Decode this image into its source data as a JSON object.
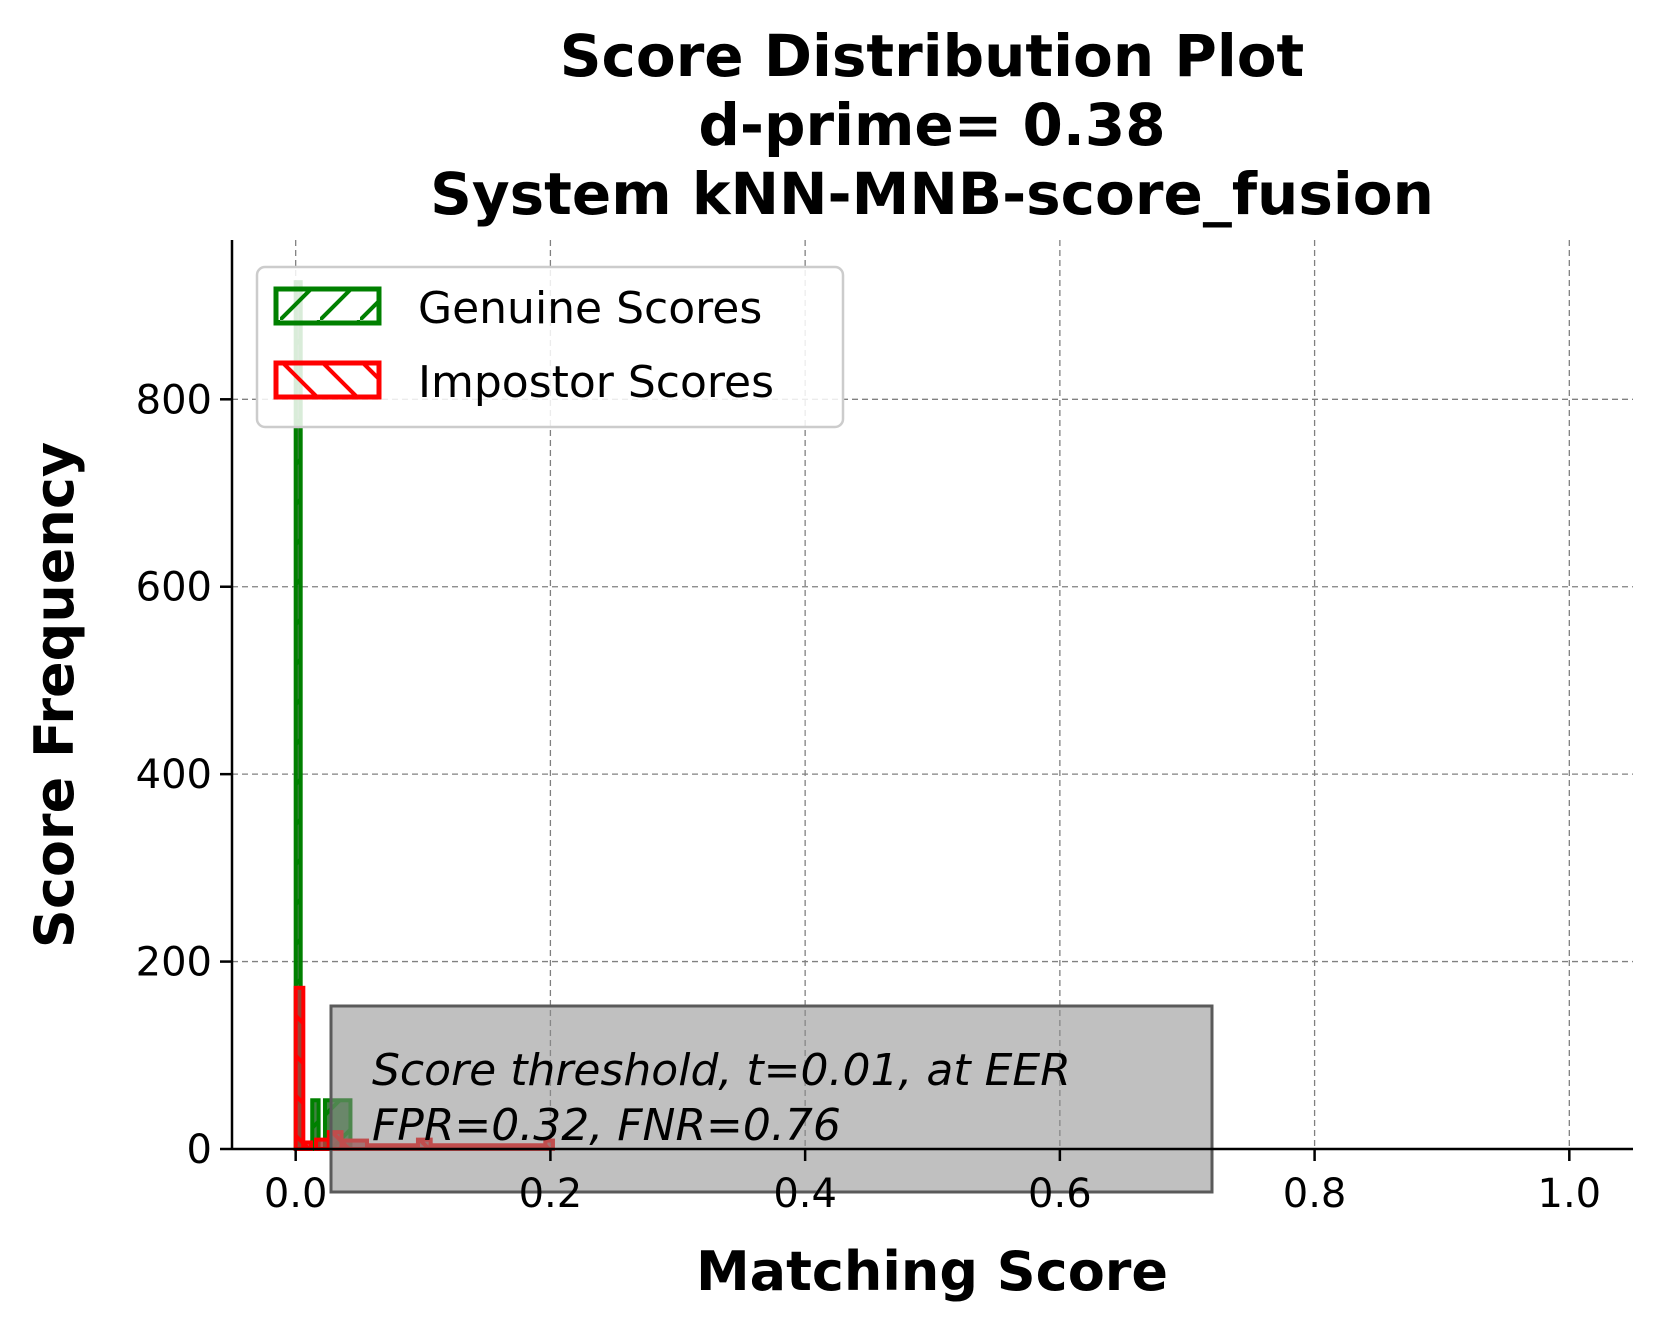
{
  "chart_data": {
    "type": "histogram",
    "title": [
      "Score Distribution Plot",
      "d-prime= 0.38",
      "System kNN-MNB-score_fusion"
    ],
    "xlabel": "Matching Score",
    "ylabel": "Score Frequency",
    "xlim": [
      -0.05,
      1.05
    ],
    "ylim": [
      0,
      970
    ],
    "xticks": [
      "0.0",
      "0.2",
      "0.4",
      "0.6",
      "0.8",
      "1.0"
    ],
    "yticks": [
      "0",
      "200",
      "400",
      "600",
      "800"
    ],
    "grid": true,
    "legend_position": "top-left",
    "series": [
      {
        "name": "Genuine Scores",
        "color": "#008000",
        "hatch": "/",
        "bins": [
          {
            "x0": 0.0,
            "x1": 0.003,
            "value": 925
          },
          {
            "x0": 0.013,
            "x1": 0.018,
            "value": 52
          },
          {
            "x0": 0.023,
            "x1": 0.043,
            "value": 52
          }
        ]
      },
      {
        "name": "Impostor Scores",
        "color": "#ff0000",
        "hatch": "\\",
        "bins": [
          {
            "x0": 0.0,
            "x1": 0.006,
            "value": 172
          },
          {
            "x0": 0.006,
            "x1": 0.012,
            "value": 7
          },
          {
            "x0": 0.016,
            "x1": 0.026,
            "value": 10
          },
          {
            "x0": 0.026,
            "x1": 0.036,
            "value": 18
          },
          {
            "x0": 0.036,
            "x1": 0.056,
            "value": 9
          },
          {
            "x0": 0.056,
            "x1": 0.096,
            "value": 4
          },
          {
            "x0": 0.096,
            "x1": 0.106,
            "value": 10
          },
          {
            "x0": 0.106,
            "x1": 0.196,
            "value": 4
          },
          {
            "x0": 0.196,
            "x1": 0.202,
            "value": 9
          }
        ]
      }
    ],
    "annotation": [
      "Score threshold, t=0.01, at EER",
      "FPR=0.32, FNR=0.76"
    ]
  }
}
